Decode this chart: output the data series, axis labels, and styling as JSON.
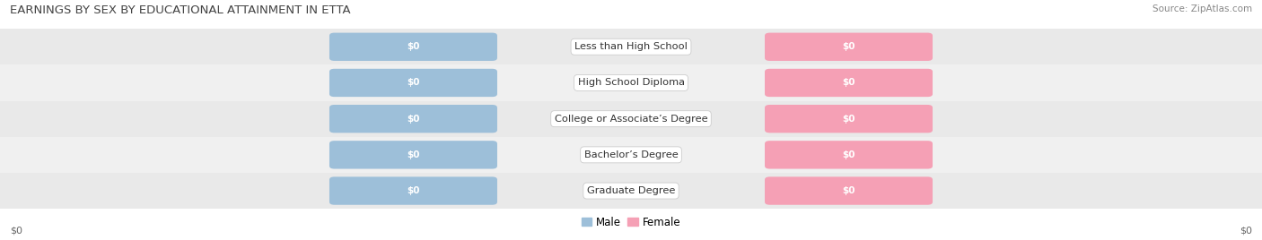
{
  "title": "EARNINGS BY SEX BY EDUCATIONAL ATTAINMENT IN ETTA",
  "source": "Source: ZipAtlas.com",
  "categories": [
    "Less than High School",
    "High School Diploma",
    "College or Associate’s Degree",
    "Bachelor’s Degree",
    "Graduate Degree"
  ],
  "male_values": [
    0,
    0,
    0,
    0,
    0
  ],
  "female_values": [
    0,
    0,
    0,
    0,
    0
  ],
  "male_color": "#9dbfd9",
  "female_color": "#f5a0b5",
  "background_color": "#ffffff",
  "row_colors": [
    "#e9e9e9",
    "#f0f0f0"
  ],
  "xlabel_left": "$0",
  "xlabel_right": "$0",
  "legend_male": "Male",
  "legend_female": "Female",
  "title_fontsize": 9.5,
  "source_fontsize": 7.5,
  "figsize": [
    14.06,
    2.68
  ],
  "dpi": 100
}
